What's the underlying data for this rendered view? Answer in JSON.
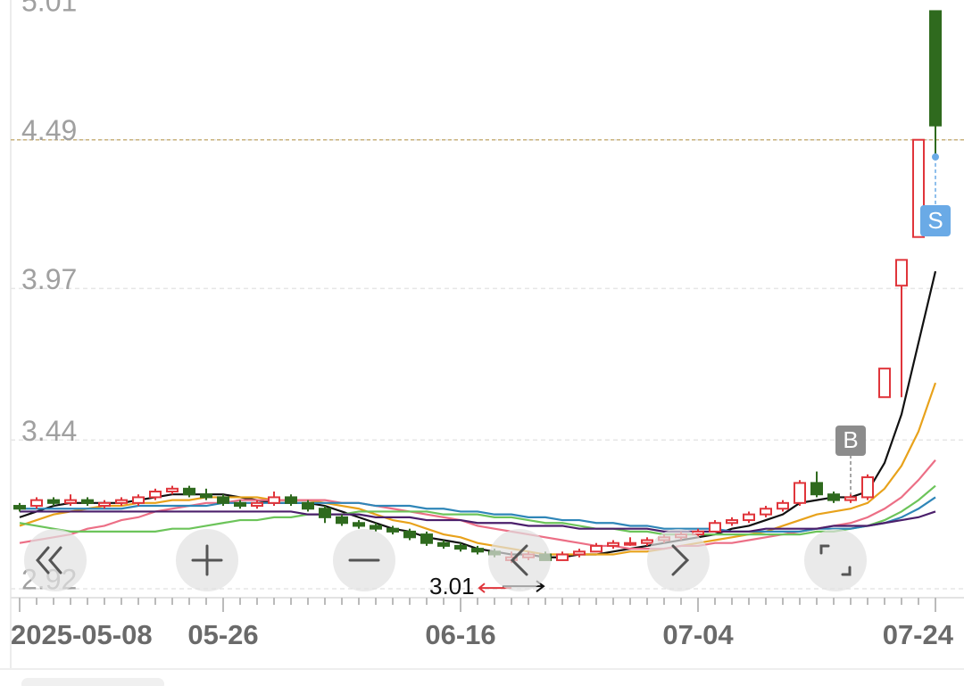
{
  "chart_data": {
    "type": "candlestick",
    "categories": [
      "2025-05-08",
      null,
      null,
      null,
      null,
      null,
      null,
      null,
      null,
      null,
      null,
      null,
      "05-26",
      null,
      null,
      null,
      null,
      null,
      null,
      null,
      null,
      null,
      null,
      null,
      null,
      null,
      "06-16",
      null,
      null,
      null,
      null,
      null,
      null,
      null,
      null,
      null,
      null,
      null,
      null,
      null,
      "07-04",
      null,
      null,
      null,
      null,
      null,
      null,
      null,
      null,
      null,
      null,
      null,
      null,
      null,
      "07-24"
    ],
    "open": [
      3.21,
      3.21,
      3.23,
      3.22,
      3.23,
      3.21,
      3.22,
      3.22,
      3.24,
      3.26,
      3.27,
      3.25,
      3.24,
      3.22,
      3.21,
      3.22,
      3.24,
      3.22,
      3.2,
      3.17,
      3.15,
      3.14,
      3.13,
      3.12,
      3.11,
      3.08,
      3.07,
      3.06,
      3.05,
      3.02,
      3.03,
      3.04,
      3.02,
      3.04,
      3.05,
      3.07,
      3.08,
      3.08,
      3.09,
      3.1,
      3.11,
      3.12,
      3.15,
      3.16,
      3.18,
      3.2,
      3.22,
      3.29,
      3.25,
      3.23,
      3.24,
      3.59,
      3.98,
      4.15,
      4.94
    ],
    "high": [
      3.22,
      3.24,
      3.24,
      3.25,
      3.24,
      3.23,
      3.24,
      3.25,
      3.27,
      3.28,
      3.28,
      3.27,
      3.25,
      3.23,
      3.23,
      3.26,
      3.25,
      3.23,
      3.21,
      3.18,
      3.16,
      3.15,
      3.14,
      3.13,
      3.12,
      3.09,
      3.08,
      3.07,
      3.06,
      3.05,
      3.05,
      3.05,
      3.05,
      3.06,
      3.08,
      3.09,
      3.1,
      3.1,
      3.11,
      3.12,
      3.13,
      3.16,
      3.17,
      3.19,
      3.21,
      3.23,
      3.3,
      3.33,
      3.26,
      3.25,
      3.32,
      3.69,
      4.07,
      4.49,
      4.94
    ],
    "low": [
      3.19,
      3.2,
      3.21,
      3.21,
      3.21,
      3.2,
      3.21,
      3.21,
      3.23,
      3.25,
      3.24,
      3.23,
      3.21,
      3.2,
      3.2,
      3.21,
      3.21,
      3.19,
      3.15,
      3.14,
      3.13,
      3.12,
      3.11,
      3.09,
      3.07,
      3.06,
      3.05,
      3.04,
      3.03,
      3.01,
      3.02,
      3.02,
      3.02,
      3.03,
      3.05,
      3.06,
      3.07,
      3.07,
      3.08,
      3.09,
      3.1,
      3.12,
      3.14,
      3.15,
      3.17,
      3.19,
      3.21,
      3.24,
      3.22,
      3.22,
      3.23,
      3.59,
      3.59,
      4.15,
      4.43
    ],
    "close": [
      3.2,
      3.23,
      3.22,
      3.23,
      3.22,
      3.22,
      3.23,
      3.24,
      3.26,
      3.27,
      3.25,
      3.24,
      3.22,
      3.21,
      3.22,
      3.24,
      3.22,
      3.2,
      3.17,
      3.15,
      3.14,
      3.13,
      3.12,
      3.1,
      3.08,
      3.07,
      3.06,
      3.05,
      3.04,
      3.03,
      3.04,
      3.02,
      3.04,
      3.05,
      3.07,
      3.08,
      3.08,
      3.09,
      3.1,
      3.11,
      3.12,
      3.15,
      3.16,
      3.18,
      3.2,
      3.22,
      3.29,
      3.25,
      3.23,
      3.24,
      3.31,
      3.69,
      4.07,
      4.49,
      4.54
    ],
    "up_color": "#e0353b",
    "down_color": "#2f6a1e",
    "series": [
      {
        "color": "#111111",
        "values": [
          3.17,
          3.19,
          3.21,
          3.22,
          3.22,
          3.22,
          3.22,
          3.23,
          3.24,
          3.25,
          3.25,
          3.25,
          3.25,
          3.24,
          3.23,
          3.22,
          3.22,
          3.22,
          3.21,
          3.19,
          3.17,
          3.15,
          3.13,
          3.12,
          3.1,
          3.09,
          3.08,
          3.06,
          3.05,
          3.04,
          3.04,
          3.03,
          3.03,
          3.04,
          3.04,
          3.05,
          3.06,
          3.07,
          3.08,
          3.09,
          3.1,
          3.11,
          3.13,
          3.14,
          3.16,
          3.18,
          3.22,
          3.23,
          3.24,
          3.24,
          3.26,
          3.36,
          3.53,
          3.78,
          4.03
        ]
      },
      {
        "color": "#e8a21b",
        "values": [
          3.14,
          3.16,
          3.18,
          3.19,
          3.2,
          3.21,
          3.21,
          3.22,
          3.22,
          3.23,
          3.23,
          3.24,
          3.24,
          3.24,
          3.24,
          3.23,
          3.23,
          3.23,
          3.22,
          3.21,
          3.2,
          3.18,
          3.16,
          3.15,
          3.13,
          3.11,
          3.1,
          3.08,
          3.07,
          3.06,
          3.05,
          3.04,
          3.04,
          3.04,
          3.04,
          3.04,
          3.05,
          3.05,
          3.06,
          3.07,
          3.08,
          3.09,
          3.1,
          3.11,
          3.12,
          3.14,
          3.16,
          3.18,
          3.19,
          3.2,
          3.22,
          3.27,
          3.35,
          3.47,
          3.64
        ]
      },
      {
        "color": "#ec6f86",
        "values": [
          3.08,
          3.09,
          3.1,
          3.11,
          3.13,
          3.14,
          3.16,
          3.17,
          3.19,
          3.2,
          3.21,
          3.22,
          3.22,
          3.23,
          3.23,
          3.23,
          3.23,
          3.23,
          3.23,
          3.22,
          3.22,
          3.21,
          3.2,
          3.19,
          3.18,
          3.17,
          3.16,
          3.14,
          3.13,
          3.12,
          3.11,
          3.1,
          3.09,
          3.08,
          3.07,
          3.07,
          3.06,
          3.06,
          3.06,
          3.07,
          3.07,
          3.08,
          3.08,
          3.09,
          3.1,
          3.11,
          3.12,
          3.13,
          3.14,
          3.15,
          3.17,
          3.2,
          3.24,
          3.3,
          3.37
        ]
      },
      {
        "color": "#6cc45a",
        "values": [
          3.15,
          3.14,
          3.13,
          3.12,
          3.12,
          3.12,
          3.12,
          3.12,
          3.12,
          3.13,
          3.13,
          3.14,
          3.15,
          3.16,
          3.16,
          3.17,
          3.17,
          3.18,
          3.18,
          3.18,
          3.19,
          3.19,
          3.19,
          3.19,
          3.19,
          3.18,
          3.18,
          3.18,
          3.17,
          3.17,
          3.16,
          3.15,
          3.15,
          3.14,
          3.13,
          3.13,
          3.12,
          3.12,
          3.11,
          3.11,
          3.11,
          3.11,
          3.11,
          3.11,
          3.11,
          3.11,
          3.11,
          3.12,
          3.12,
          3.13,
          3.14,
          3.16,
          3.19,
          3.23,
          3.28
        ]
      },
      {
        "color": "#2f86b8",
        "values": [
          3.2,
          3.2,
          3.2,
          3.2,
          3.2,
          3.2,
          3.2,
          3.21,
          3.21,
          3.21,
          3.21,
          3.21,
          3.22,
          3.22,
          3.22,
          3.22,
          3.22,
          3.22,
          3.22,
          3.22,
          3.22,
          3.21,
          3.21,
          3.21,
          3.2,
          3.2,
          3.19,
          3.19,
          3.18,
          3.18,
          3.17,
          3.17,
          3.16,
          3.16,
          3.15,
          3.15,
          3.14,
          3.14,
          3.13,
          3.13,
          3.13,
          3.13,
          3.12,
          3.12,
          3.12,
          3.12,
          3.12,
          3.13,
          3.13,
          3.13,
          3.14,
          3.15,
          3.17,
          3.2,
          3.24
        ]
      },
      {
        "color": "#4b1f6b",
        "values": [
          3.19,
          3.19,
          3.19,
          3.19,
          3.19,
          3.19,
          3.19,
          3.19,
          3.19,
          3.19,
          3.19,
          3.19,
          3.19,
          3.19,
          3.19,
          3.19,
          3.19,
          3.18,
          3.18,
          3.18,
          3.18,
          3.17,
          3.17,
          3.17,
          3.16,
          3.16,
          3.16,
          3.15,
          3.15,
          3.15,
          3.14,
          3.14,
          3.14,
          3.13,
          3.13,
          3.13,
          3.13,
          3.13,
          3.12,
          3.12,
          3.12,
          3.12,
          3.12,
          3.12,
          3.13,
          3.13,
          3.13,
          3.13,
          3.14,
          3.14,
          3.14,
          3.15,
          3.16,
          3.17,
          3.19
        ]
      }
    ],
    "ylim": [
      2.92,
      5.01
    ],
    "yticks": [
      2.92,
      3.44,
      3.97,
      4.49,
      5.01
    ],
    "grid": true,
    "low_label": "3.01",
    "buy_label": "B",
    "sell_label": "S"
  }
}
